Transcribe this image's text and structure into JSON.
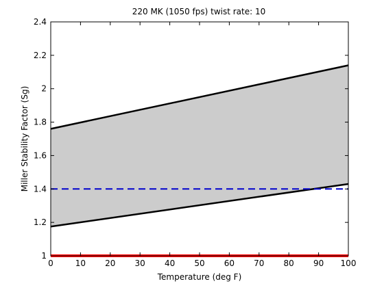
{
  "chart_data": {
    "type": "area",
    "title": "220 MK (1050 fps) twist rate: 10",
    "xlabel": "Temperature (deg F)",
    "ylabel": "Miller Stability Factor (Sg)",
    "xlim": [
      0,
      100
    ],
    "ylim": [
      1,
      2.4
    ],
    "xticks": [
      0,
      10,
      20,
      30,
      40,
      50,
      60,
      70,
      80,
      90,
      100
    ],
    "yticks": [
      1,
      1.2,
      1.4,
      1.6,
      1.8,
      2,
      2.2,
      2.4
    ],
    "ytick_labels": [
      "1",
      "1.2",
      "1.4",
      "1.6",
      "1.8",
      "2",
      "2.2",
      "2.4"
    ],
    "grid": false,
    "band": {
      "x": [
        0,
        100
      ],
      "upper": [
        1.76,
        2.14
      ],
      "lower": [
        1.175,
        1.43
      ],
      "fill_color": "#cccccc",
      "edge_color": "#000000"
    },
    "reference_lines": [
      {
        "y": 1.4,
        "style": "dashed",
        "color": "#0000cc"
      },
      {
        "y": 1.0,
        "style": "solid",
        "color": "#ff0000"
      }
    ]
  }
}
